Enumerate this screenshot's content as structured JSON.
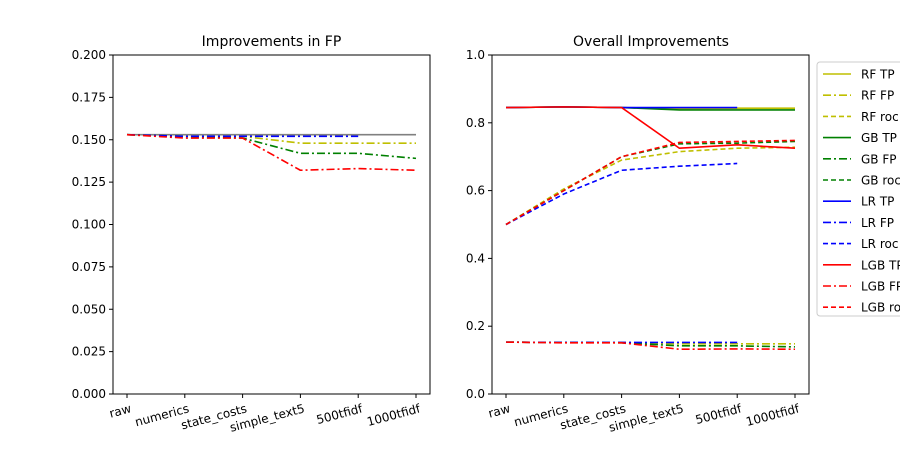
{
  "chart_data": [
    {
      "type": "line",
      "title": "Improvements in FP",
      "xlabel": "",
      "ylabel": "",
      "categories": [
        "raw",
        "numerics",
        "state_costs",
        "simple_text5",
        "500tfidf",
        "1000tfidf"
      ],
      "ylim": [
        0,
        0.2
      ],
      "yticks": [
        "0.000",
        "0.025",
        "0.050",
        "0.075",
        "0.100",
        "0.125",
        "0.150",
        "0.175",
        "0.200"
      ],
      "ytick_values": [
        0,
        0.025,
        0.05,
        0.075,
        0.1,
        0.125,
        0.15,
        0.175,
        0.2
      ],
      "series": [
        {
          "color": "#808080",
          "dash": "solid",
          "values": [
            0.153,
            0.153,
            0.153,
            0.153,
            0.153,
            0.153
          ]
        },
        {
          "color": "#bfbf00",
          "dash": "dashdot",
          "values": [
            0.153,
            0.152,
            0.152,
            0.148,
            0.148,
            0.148
          ]
        },
        {
          "color": "#008000",
          "dash": "dashdot",
          "values": [
            0.153,
            0.152,
            0.151,
            0.142,
            0.142,
            0.139
          ]
        },
        {
          "color": "#0000ff",
          "dash": "dashdot",
          "values": [
            0.153,
            0.152,
            0.152,
            0.152,
            0.152,
            null
          ]
        },
        {
          "color": "#ff0000",
          "dash": "dashdot",
          "values": [
            0.153,
            0.151,
            0.151,
            0.132,
            0.133,
            0.132
          ]
        }
      ]
    },
    {
      "type": "line",
      "title": "Overall Improvements",
      "xlabel": "",
      "ylabel": "",
      "categories": [
        "raw",
        "numerics",
        "state_costs",
        "simple_text5",
        "500tfidf",
        "1000tfidf"
      ],
      "ylim": [
        0,
        1.0
      ],
      "yticks": [
        "0.0",
        "0.2",
        "0.4",
        "0.6",
        "0.8",
        "1.0"
      ],
      "ytick_values": [
        0,
        0.2,
        0.4,
        0.6,
        0.8,
        1.0
      ],
      "legend_position": "right-outside",
      "series": [
        {
          "name": "RF TP",
          "color": "#bfbf00",
          "dash": "solid",
          "values": [
            0.845,
            0.847,
            0.845,
            0.842,
            0.843,
            0.843
          ]
        },
        {
          "name": "RF FP",
          "color": "#bfbf00",
          "dash": "dashdot",
          "values": [
            0.153,
            0.152,
            0.152,
            0.148,
            0.148,
            0.148
          ]
        },
        {
          "name": "RF roc",
          "color": "#bfbf00",
          "dash": "dashed",
          "values": [
            0.5,
            0.605,
            0.69,
            0.715,
            0.725,
            0.728
          ]
        },
        {
          "name": "GB TP",
          "color": "#008000",
          "dash": "solid",
          "values": [
            0.845,
            0.847,
            0.845,
            0.838,
            0.838,
            0.838
          ]
        },
        {
          "name": "GB FP",
          "color": "#008000",
          "dash": "dashdot",
          "values": [
            0.153,
            0.152,
            0.151,
            0.142,
            0.142,
            0.139
          ]
        },
        {
          "name": "GB roc",
          "color": "#008000",
          "dash": "dashed",
          "values": [
            0.5,
            0.6,
            0.7,
            0.738,
            0.74,
            0.745
          ]
        },
        {
          "name": "LR TP",
          "color": "#0000ff",
          "dash": "solid",
          "values": [
            0.845,
            0.847,
            0.845,
            0.845,
            0.845,
            null
          ]
        },
        {
          "name": "LR FP",
          "color": "#0000ff",
          "dash": "dashdot",
          "values": [
            0.153,
            0.152,
            0.152,
            0.152,
            0.152,
            null
          ]
        },
        {
          "name": "LR roc",
          "color": "#0000ff",
          "dash": "dashed",
          "values": [
            0.5,
            0.59,
            0.66,
            0.672,
            0.68,
            null
          ]
        },
        {
          "name": "LGB TP",
          "color": "#ff0000",
          "dash": "solid",
          "values": [
            0.845,
            0.847,
            0.845,
            0.725,
            0.735,
            0.725
          ]
        },
        {
          "name": "LGB FP",
          "color": "#ff0000",
          "dash": "dashdot",
          "values": [
            0.153,
            0.151,
            0.151,
            0.132,
            0.133,
            0.132
          ]
        },
        {
          "name": "LGB roc",
          "color": "#ff0000",
          "dash": "dashed",
          "values": [
            0.5,
            0.6,
            0.7,
            0.742,
            0.745,
            0.748
          ]
        }
      ]
    }
  ]
}
